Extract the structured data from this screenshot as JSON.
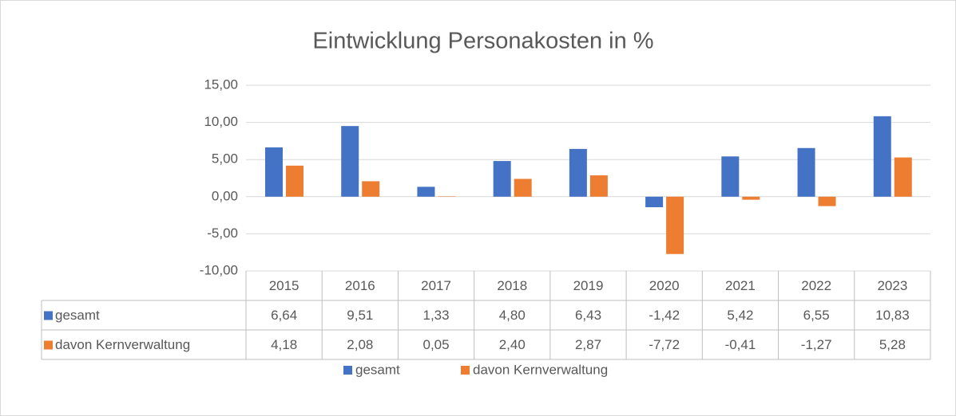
{
  "chart_data": {
    "type": "bar",
    "title": "Eintwicklung Personakosten in %",
    "categories": [
      "2015",
      "2016",
      "2017",
      "2018",
      "2019",
      "2020",
      "2021",
      "2022",
      "2023"
    ],
    "series": [
      {
        "name": "gesamt",
        "color": "#4472c4",
        "values": [
          6.64,
          9.51,
          1.33,
          4.8,
          6.43,
          -1.42,
          5.42,
          6.55,
          10.83
        ],
        "value_labels": [
          "6,64",
          "9,51",
          "1,33",
          "4,80",
          "6,43",
          "-1,42",
          "5,42",
          "6,55",
          "10,83"
        ]
      },
      {
        "name": "davon Kernverwaltung",
        "color": "#ed7d31",
        "values": [
          4.18,
          2.08,
          0.05,
          2.4,
          2.87,
          -7.72,
          -0.41,
          -1.27,
          5.28
        ],
        "value_labels": [
          "4,18",
          "2,08",
          "0,05",
          "2,40",
          "2,87",
          "-7,72",
          "-0,41",
          "-1,27",
          "5,28"
        ]
      }
    ],
    "ylim": [
      -10,
      15
    ],
    "yticks": [
      {
        "value": -10,
        "label": "-10,00"
      },
      {
        "value": -5,
        "label": "-5,00"
      },
      {
        "value": 0,
        "label": "0,00"
      },
      {
        "value": 5,
        "label": "5,00"
      },
      {
        "value": 10,
        "label": "10,00"
      },
      {
        "value": 15,
        "label": "15,00"
      }
    ],
    "grid": true,
    "legend": "bottom"
  }
}
